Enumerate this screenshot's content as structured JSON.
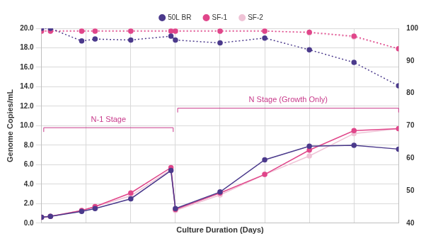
{
  "chart_data": {
    "type": "line",
    "x_label": "Culture Duration (Days)",
    "y_label": "Genome Copies/mL",
    "x": [
      0,
      0.2,
      0.9,
      1.2,
      2.0,
      2.9,
      3.0,
      4.0,
      5.0,
      6.0,
      7.0,
      8.0
    ],
    "xlim": [
      0,
      8
    ],
    "xticks": [
      0,
      1,
      2,
      3,
      4,
      5,
      6,
      7,
      8
    ],
    "ylim": [
      0,
      20
    ],
    "yticks": [
      {
        "value": 0,
        "label": "0.0"
      },
      {
        "value": 2,
        "label": "2.0"
      },
      {
        "value": 4,
        "label": "4.0"
      },
      {
        "value": 6,
        "label": "6.0"
      },
      {
        "value": 8,
        "label": "8.0"
      },
      {
        "value": 10,
        "label": "10.0"
      },
      {
        "value": 12,
        "label": "12.0"
      },
      {
        "value": 14,
        "label": "14.0"
      },
      {
        "value": 16,
        "label": "16.0"
      },
      {
        "value": 18,
        "label": "18.0"
      },
      {
        "value": 20,
        "label": "20.0"
      }
    ],
    "y2lim": [
      40,
      100
    ],
    "y2ticks": [
      40,
      50,
      60,
      70,
      80,
      90,
      100
    ],
    "grid": true,
    "legend": "top",
    "tick_labels": "y",
    "series": [
      {
        "name": "50L BR",
        "color": "#4b3a8c",
        "marker": "circle",
        "line_style": "solid",
        "values": [
          0.6,
          0.7,
          1.2,
          1.5,
          2.5,
          5.4,
          1.5,
          3.2,
          6.5,
          7.9,
          8.0,
          7.6
        ]
      },
      {
        "name": "SF-1",
        "color": "#e0468a",
        "marker": "circle",
        "line_style": "solid",
        "values": [
          0.6,
          0.7,
          1.3,
          1.7,
          3.1,
          5.7,
          1.4,
          3.1,
          5.0,
          7.5,
          9.5,
          9.7
        ]
      },
      {
        "name": "SF-2",
        "color": "#efc3d6",
        "marker": "circle",
        "line_style": "solid",
        "values": [
          0.6,
          0.7,
          1.3,
          1.7,
          2.8,
          5.5,
          1.3,
          2.9,
          5.0,
          6.9,
          9.2,
          9.7
        ]
      },
      {
        "name": "50L BR",
        "color": "#4b3a8c",
        "marker": "circle",
        "line_style": "dotted",
        "axis": "y2",
        "values": [
          100,
          100,
          96.1,
          96.7,
          96.4,
          97.6,
          96.4,
          95.5,
          97.0,
          93.4,
          89.5,
          82.3
        ]
      },
      {
        "name": "SF-1",
        "color": "#e0468a",
        "marker": "circle",
        "line_style": "dotted",
        "axis": "y2",
        "values": [
          99.1,
          99.1,
          99.1,
          99.1,
          99.1,
          99.1,
          99.1,
          99.1,
          99.1,
          98.8,
          97.6,
          93.7
        ]
      },
      {
        "name": "SF-2",
        "color": "#efc3d6",
        "marker": "circle",
        "line_style": "dotted",
        "axis": "y2",
        "values": [
          99.4,
          99.4,
          99.4,
          99.4,
          99.4,
          99.4,
          99.4,
          99.4,
          99.4,
          98.6,
          97.3,
          93.7
        ]
      }
    ],
    "annotations": [
      {
        "text": "N-1 Stage",
        "x": [
          0.05,
          2.95
        ],
        "y": 9.8
      },
      {
        "text": "N Stage (Growth Only)",
        "x": [
          3.05,
          8.0
        ],
        "y": 11.8
      }
    ]
  }
}
